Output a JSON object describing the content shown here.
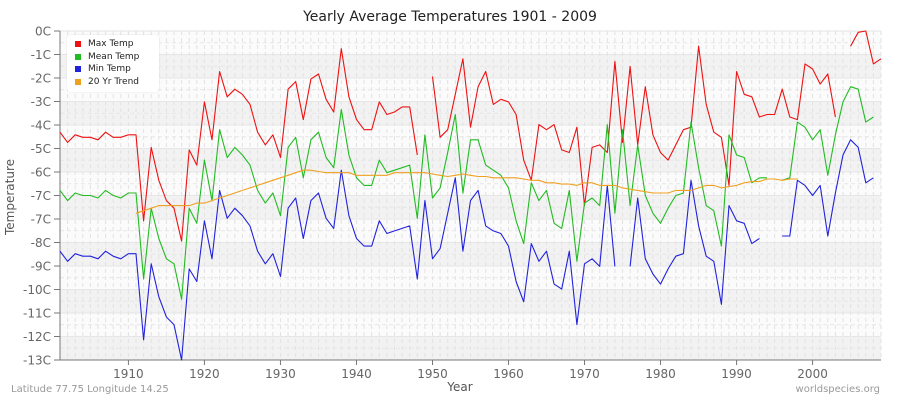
{
  "chart_data": {
    "type": "line",
    "title": "Yearly Average Temperatures 1901 - 2009",
    "xlabel": "Year",
    "ylabel": "Temperature",
    "x_ticks": [
      1910,
      1920,
      1930,
      1940,
      1950,
      1960,
      1970,
      1980,
      1990,
      2000
    ],
    "y_tick_labels": [
      "0C",
      "-1C",
      "-2C",
      "-3C",
      "-4C",
      "-5C",
      "-6C",
      "-7C",
      "-7C",
      "-8C",
      "-9C",
      "-10C",
      "-11C",
      "-12C",
      "-13C"
    ],
    "xlim": [
      1901,
      2009
    ],
    "ylim": [
      -13,
      0
    ],
    "grid": true,
    "legend_position": "top-left",
    "x_start": 1901,
    "series": [
      {
        "name": "Max Temp",
        "color": "#ee1111",
        "values": [
          -4.0,
          -4.4,
          -4.1,
          -4.2,
          -4.2,
          -4.3,
          -4.0,
          -4.2,
          -4.2,
          -4.1,
          -4.1,
          -7.5,
          -4.6,
          -5.9,
          -6.7,
          -7.0,
          -8.3,
          -4.7,
          -5.3,
          -2.8,
          -4.3,
          -1.6,
          -2.6,
          -2.3,
          -2.5,
          -2.9,
          -4.0,
          -4.5,
          -4.1,
          -5.0,
          -2.3,
          -2.0,
          -3.5,
          -1.9,
          -1.7,
          -2.7,
          -3.2,
          -0.7,
          -2.6,
          -3.5,
          -3.9,
          -3.9,
          -2.8,
          -3.3,
          -3.2,
          -3.0,
          -3.0,
          -4.9,
          null,
          -1.8,
          -4.2,
          -3.9,
          -2.5,
          -1.1,
          -3.8,
          -2.2,
          -1.6,
          -2.9,
          -2.7,
          -2.8,
          -3.3,
          -5.1,
          -5.9,
          -3.7,
          -3.9,
          -3.7,
          -4.7,
          -4.8,
          -3.8,
          -6.9,
          -4.6,
          -4.5,
          -4.8,
          -1.2,
          -4.4,
          -1.4,
          -4.5,
          -2.2,
          -4.1,
          -4.8,
          -5.1,
          -4.5,
          -3.9,
          -3.8,
          -0.6,
          -2.9,
          -4.0,
          -4.2,
          -6.1,
          -1.6,
          -2.5,
          -2.6,
          -3.4,
          -3.3,
          -3.3,
          -2.3,
          -3.4,
          -3.5,
          -1.3,
          -1.5,
          -2.1,
          -1.7,
          -3.4,
          null,
          -0.6,
          -0.05,
          0.0,
          -1.3,
          -1.1
        ]
      },
      {
        "name": "Mean Temp",
        "color": "#22bb22",
        "values": [
          -6.3,
          -6.7,
          -6.4,
          -6.5,
          -6.5,
          -6.6,
          -6.3,
          -6.5,
          -6.6,
          -6.4,
          -6.4,
          -9.8,
          -7.0,
          -8.2,
          -9.0,
          -9.2,
          -10.6,
          -7.0,
          -7.6,
          -5.1,
          -6.7,
          -3.9,
          -5.0,
          -4.6,
          -4.9,
          -5.3,
          -6.3,
          -6.8,
          -6.4,
          -7.3,
          -4.6,
          -4.2,
          -5.8,
          -4.3,
          -4.0,
          -5.0,
          -5.4,
          -3.1,
          -4.9,
          -5.8,
          -6.1,
          -6.1,
          -5.1,
          -5.6,
          -5.5,
          -5.4,
          -5.3,
          -7.4,
          -4.1,
          -6.6,
          -6.2,
          -4.8,
          -3.3,
          -6.4,
          -4.3,
          -4.3,
          -5.3,
          -5.5,
          -5.7,
          -6.2,
          -7.5,
          -8.4,
          -6.0,
          -6.7,
          -6.3,
          -7.6,
          -7.8,
          -6.3,
          -9.1,
          -6.8,
          -6.6,
          -6.9,
          -3.7,
          -7.2,
          -3.9,
          -6.9,
          -4.5,
          -6.5,
          -7.2,
          -7.6,
          -7.0,
          -6.5,
          -6.4,
          -3.6,
          -5.4,
          -6.9,
          -7.1,
          -8.5,
          -4.1,
          -4.9,
          -5.0,
          -6.0,
          -5.8,
          -5.8,
          null,
          -5.9,
          -5.8,
          -3.6,
          -3.8,
          -4.3,
          -3.9,
          -5.7,
          -4.1,
          -2.8,
          -2.2,
          -2.3,
          -3.6,
          -3.4
        ]
      },
      {
        "name": "Min Temp",
        "color": "#2222dd",
        "values": [
          -8.7,
          -9.1,
          -8.8,
          -8.9,
          -8.9,
          -9.0,
          -8.7,
          -8.9,
          -9.0,
          -8.8,
          -8.8,
          -12.2,
          -9.2,
          -10.5,
          -11.3,
          -11.6,
          -13.0,
          -9.4,
          -9.9,
          -7.5,
          -9.0,
          -6.3,
          -7.4,
          -7.0,
          -7.3,
          -7.7,
          -8.7,
          -9.2,
          -8.8,
          -9.7,
          -7.0,
          -6.6,
          -8.2,
          -6.7,
          -6.4,
          -7.4,
          -7.8,
          -5.5,
          -7.3,
          -8.2,
          -8.5,
          -8.5,
          -7.5,
          -8.0,
          -7.9,
          -7.8,
          -7.7,
          -9.8,
          -6.7,
          -9.0,
          -8.6,
          -7.2,
          -5.8,
          -8.7,
          -6.7,
          -6.3,
          -7.7,
          -7.9,
          -8.0,
          -8.5,
          -9.9,
          -10.7,
          -8.4,
          -9.1,
          -8.7,
          -10.0,
          -10.2,
          -8.7,
          -11.6,
          -9.2,
          -9.0,
          -9.3,
          -6.1,
          -9.3,
          null,
          -9.3,
          -6.6,
          -9.0,
          -9.6,
          -10.0,
          -9.4,
          -8.9,
          -8.8,
          -5.9,
          -7.7,
          -8.9,
          -9.1,
          -10.8,
          -6.9,
          -7.5,
          -7.6,
          -8.4,
          -8.2,
          null,
          null,
          -8.1,
          -8.1,
          -5.9,
          -6.1,
          -6.5,
          -6.1,
          -8.1,
          -6.4,
          -4.9,
          -4.3,
          -4.6,
          -6.0,
          -5.8
        ]
      },
      {
        "name": "20 Yr Trend",
        "color": "#f0a020",
        "values": [
          null,
          null,
          null,
          null,
          null,
          null,
          null,
          null,
          null,
          null,
          -7.2,
          -7.1,
          -7.0,
          -6.9,
          -6.9,
          -6.9,
          -6.9,
          -6.9,
          -6.8,
          -6.8,
          -6.7,
          -6.6,
          -6.5,
          -6.4,
          -6.3,
          -6.2,
          -6.1,
          -6.0,
          -5.9,
          -5.8,
          -5.7,
          -5.6,
          -5.5,
          -5.5,
          -5.55,
          -5.6,
          -5.6,
          -5.6,
          -5.6,
          -5.7,
          -5.7,
          -5.7,
          -5.7,
          -5.7,
          -5.6,
          -5.6,
          -5.6,
          -5.6,
          -5.6,
          -5.65,
          -5.7,
          -5.75,
          -5.7,
          -5.65,
          -5.7,
          -5.75,
          -5.75,
          -5.8,
          -5.8,
          -5.8,
          -5.8,
          -5.85,
          -5.9,
          -5.9,
          -6.0,
          -6.0,
          -6.05,
          -6.05,
          -6.1,
          -6.0,
          -6.0,
          -6.1,
          -6.1,
          -6.1,
          -6.2,
          -6.25,
          -6.3,
          -6.35,
          -6.4,
          -6.4,
          -6.4,
          -6.3,
          -6.3,
          -6.3,
          -6.2,
          -6.1,
          -6.1,
          -6.2,
          -6.15,
          -6.1,
          -6.0,
          -5.95,
          -5.95,
          -5.85,
          -5.85,
          -5.9,
          -5.85,
          -5.85,
          null,
          null,
          null,
          null,
          null,
          null,
          null,
          null,
          null,
          null,
          null
        ]
      }
    ]
  },
  "footer": {
    "location": "Latitude 77.75 Longitude 14.25",
    "source": "worldspecies.org"
  }
}
